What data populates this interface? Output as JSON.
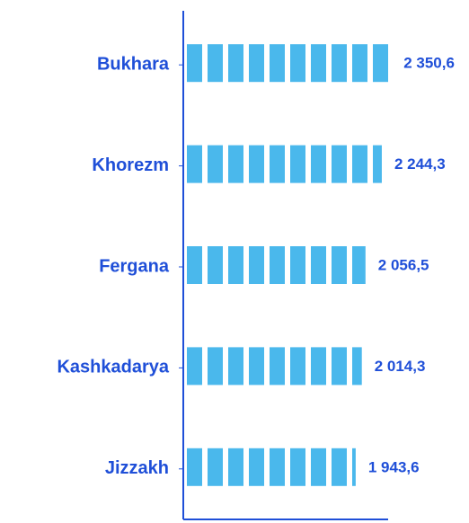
{
  "chart_data": {
    "type": "barh",
    "categories": [
      "Bukhara",
      "Khorezm",
      "Fergana",
      "Kashkadarya",
      "Jizzakh"
    ],
    "values": [
      2350.6,
      2244.3,
      2056.5,
      2014.3,
      1943.6
    ],
    "value_labels": [
      "2 350,6",
      "2 244,3",
      "2 056,5",
      "2 014,3",
      "1 943,6"
    ],
    "color": "#4ab8ec",
    "xlim": [
      0,
      3000
    ]
  }
}
